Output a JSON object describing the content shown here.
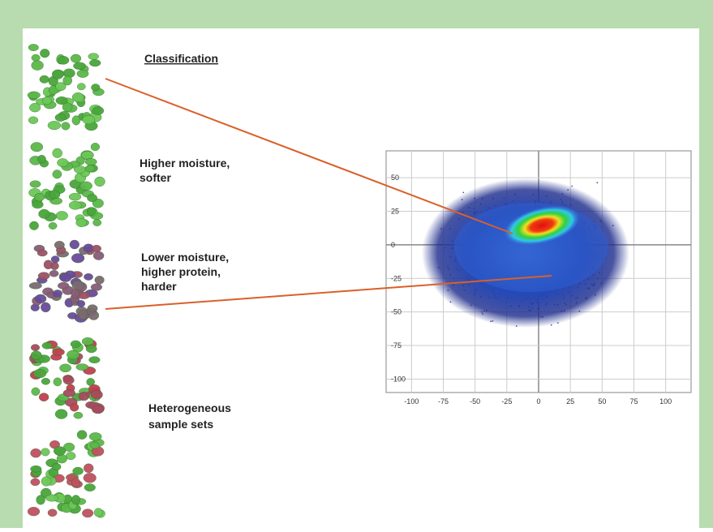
{
  "labels": {
    "classification": "Classification",
    "softer": [
      "Higher moisture,",
      "softer"
    ],
    "harder": [
      "Lower moisture,",
      "higher protein,",
      "harder"
    ],
    "heterogeneous": [
      "Heterogeneous",
      "sample sets"
    ]
  },
  "chart_data": {
    "type": "density",
    "xlim": [
      -120,
      120
    ],
    "ylim": [
      -110,
      70
    ],
    "xticks": [
      -100,
      -75,
      -50,
      -25,
      0,
      25,
      50,
      75,
      100
    ],
    "yticks": [
      50,
      25,
      0,
      -25,
      -50,
      -75,
      -100
    ],
    "grid": true
  }
}
